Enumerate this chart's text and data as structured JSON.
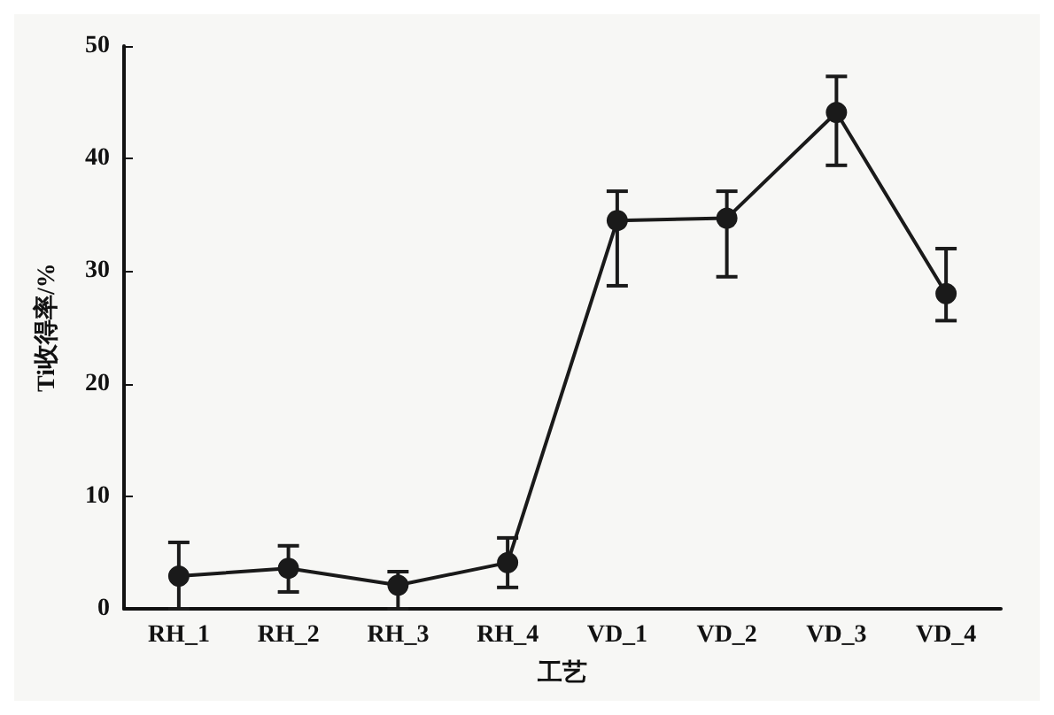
{
  "chart_data": {
    "type": "line",
    "xlabel": "工艺",
    "ylabel": "Ti收得率/%",
    "categories": [
      "RH_1",
      "RH_2",
      "RH_3",
      "RH_4",
      "VD_1",
      "VD_2",
      "VD_3",
      "VD_4"
    ],
    "series": [
      {
        "color": "#1a1a1a",
        "values": [
          2.9,
          3.6,
          2.1,
          4.1,
          34.5,
          34.7,
          44.1,
          28.0
        ],
        "errors": [
          [
            0,
            5.9
          ],
          [
            1.5,
            5.6
          ],
          [
            0,
            3.3
          ],
          [
            1.9,
            6.3
          ],
          [
            28.7,
            37.1
          ],
          [
            29.5,
            37.1
          ],
          [
            39.4,
            47.3
          ],
          [
            25.6,
            32.0
          ]
        ]
      }
    ],
    "ylim": [
      0,
      50
    ],
    "yticks": [
      0,
      10,
      20,
      30,
      40,
      50
    ],
    "marker": "circle",
    "line_style": "solid"
  }
}
